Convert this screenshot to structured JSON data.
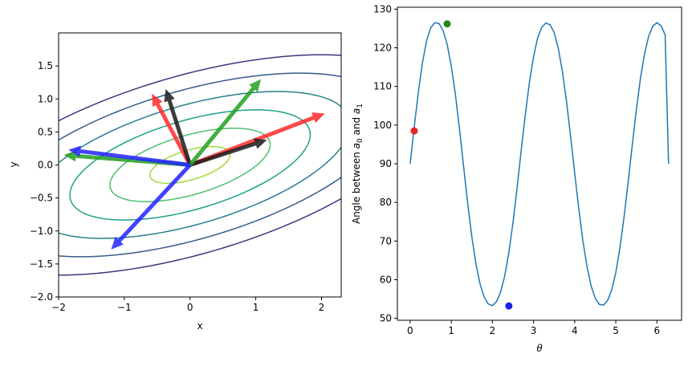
{
  "chart_data": [
    {
      "type": "contour",
      "xlabel": "x",
      "ylabel": "y",
      "xlim": [
        -2,
        2.3
      ],
      "ylim": [
        -2,
        2
      ],
      "xticks": [
        -2,
        -1,
        0,
        1,
        2
      ],
      "yticks": [
        -2.0,
        -1.5,
        -1.0,
        -0.5,
        0.0,
        0.5,
        1.0,
        1.5
      ],
      "xtick_labels": [
        "−2",
        "−1",
        "0",
        "1",
        "2"
      ],
      "ytick_labels": [
        "−2.0",
        "−1.5",
        "−1.0",
        "−0.5",
        "0.0",
        "0.5",
        "1.0",
        "1.5"
      ],
      "contours": [
        {
          "level": 1,
          "color": "#9fda3a"
        },
        {
          "level": 2,
          "color": "#4ac16d"
        },
        {
          "level": 3,
          "color": "#1fa187"
        },
        {
          "level": 4,
          "color": "#277f8e"
        },
        {
          "level": 5,
          "color": "#365c8d"
        },
        {
          "level": 6,
          "color": "#46327e"
        }
      ],
      "arrows": [
        {
          "name": "red-1",
          "dx": 2.05,
          "dy": 0.78,
          "color": "#ff2a2a"
        },
        {
          "name": "red-2",
          "dx": -0.58,
          "dy": 1.08,
          "color": "#ff2a2a"
        },
        {
          "name": "black-1",
          "dx": 1.17,
          "dy": 0.38,
          "color": "#1a1a1a"
        },
        {
          "name": "black-2",
          "dx": -0.37,
          "dy": 1.15,
          "color": "#1a1a1a"
        },
        {
          "name": "green-1",
          "dx": 1.08,
          "dy": 1.3,
          "color": "#22a022"
        },
        {
          "name": "green-2",
          "dx": -1.92,
          "dy": 0.15,
          "color": "#22a022"
        },
        {
          "name": "blue-1",
          "dx": -1.85,
          "dy": 0.23,
          "color": "#2222ff"
        },
        {
          "name": "blue-2",
          "dx": -1.2,
          "dy": -1.28,
          "color": "#2222ff"
        }
      ],
      "grid": false
    },
    {
      "type": "line",
      "xlabel": "θ",
      "ylabel_parts": [
        "Angle between ",
        "a",
        "0",
        " and ",
        "a",
        "1"
      ],
      "xlim": [
        -0.31,
        6.6
      ],
      "ylim": [
        49.5,
        130.5
      ],
      "xticks": [
        0,
        1,
        2,
        3,
        4,
        5,
        6
      ],
      "yticks": [
        50,
        60,
        70,
        80,
        90,
        100,
        110,
        120,
        130
      ],
      "xtick_labels": [
        "0",
        "1",
        "2",
        "3",
        "4",
        "5",
        "6"
      ],
      "ytick_labels": [
        "50",
        "60",
        "70",
        "80",
        "90",
        "100",
        "110",
        "120",
        "130"
      ],
      "series": [
        {
          "color": "#1f77b4",
          "x": [
            0,
            0.1,
            0.2,
            0.3,
            0.4,
            0.5,
            0.6,
            0.7,
            0.8,
            0.9,
            1.0,
            1.1,
            1.2,
            1.3,
            1.4,
            1.5,
            1.6,
            1.7,
            1.8,
            1.9,
            2.0,
            2.1,
            2.2,
            2.3,
            2.4,
            2.5,
            2.6,
            2.7,
            2.8,
            2.9,
            3.0,
            3.1,
            3.2,
            3.3,
            3.4,
            3.5,
            3.6,
            3.7,
            3.8,
            3.9,
            4.0,
            4.1,
            4.2,
            4.3,
            4.4,
            4.5,
            4.6,
            4.7,
            4.8,
            4.9,
            5.0,
            5.1,
            5.2,
            5.3,
            5.4,
            5.5,
            5.6,
            5.7,
            5.8,
            5.9,
            6.0,
            6.1,
            6.2,
            6.283
          ],
          "y": [
            90.0,
            99.5,
            108.6,
            116.2,
            121.8,
            125.2,
            126.5,
            126.3,
            124.5,
            120.9,
            115.3,
            108.0,
            99.0,
            89.3,
            79.7,
            71.1,
            64.1,
            58.9,
            55.5,
            53.7,
            53.3,
            54.3,
            56.8,
            61.0,
            67.0,
            74.7,
            83.7,
            93.4,
            102.7,
            111.0,
            117.7,
            122.5,
            125.3,
            126.4,
            126.0,
            124.0,
            120.0,
            114.0,
            106.3,
            97.2,
            87.7,
            78.4,
            70.1,
            63.4,
            58.4,
            55.2,
            53.6,
            53.4,
            54.6,
            57.3,
            61.8,
            68.2,
            76.1,
            85.2,
            94.7,
            104.0,
            112.1,
            118.5,
            123.0,
            125.6,
            126.5,
            125.7,
            123.4,
            90.0
          ]
        }
      ],
      "points": [
        {
          "name": "red-point",
          "x": 0.1,
          "y": 98.5,
          "color": "#e8262a"
        },
        {
          "name": "green-point",
          "x": 0.9,
          "y": 126.2,
          "color": "#1f8a1f"
        },
        {
          "name": "blue-point",
          "x": 2.4,
          "y": 53.2,
          "color": "#1f1fe8"
        }
      ],
      "grid": false
    }
  ]
}
